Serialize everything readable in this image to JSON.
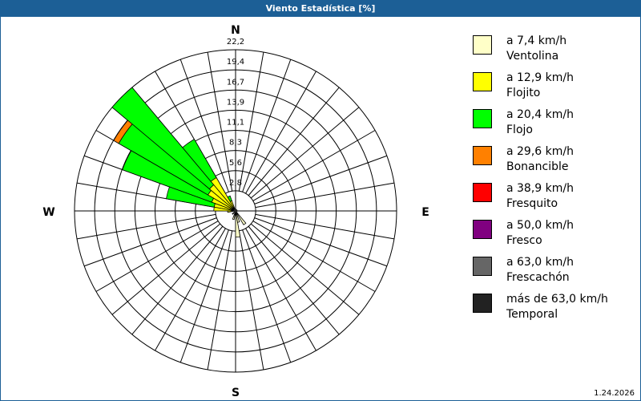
{
  "title": "Viento Estadística [%]",
  "version": "1.24.2026",
  "chart_data": {
    "type": "wind-rose",
    "compass": {
      "n": "N",
      "e": "E",
      "s": "S",
      "w": "W"
    },
    "ring_labels": [
      "2,8",
      "5,6",
      "8,3",
      "11,1",
      "13,9",
      "16,7",
      "19,4",
      "22,2"
    ],
    "rmax": 22.2,
    "sector_width_deg": 10,
    "classes": [
      {
        "range": "a 7,4 km/h",
        "name": "Ventolina",
        "color": "#ffffc8"
      },
      {
        "range": "a 12,9 km/h",
        "name": "Flojito",
        "color": "#ffff00"
      },
      {
        "range": "a 20,4 km/h",
        "name": "Flojo",
        "color": "#00ff00"
      },
      {
        "range": "a 29,6 km/h",
        "name": "Bonancible",
        "color": "#ff8000"
      },
      {
        "range": "a 38,9 km/h",
        "name": "Fresquito",
        "color": "#ff0000"
      },
      {
        "range": "a 50,0 km/h",
        "name": "Fresco",
        "color": "#800080"
      },
      {
        "range": "a 63,0 km/h",
        "name": "Frescachón",
        "color": "#666666"
      },
      {
        "range": "más de 63,0 km/h",
        "name": "Temporal",
        "color": "#222222"
      }
    ],
    "sectors": [
      {
        "dir": 335,
        "values": [
          0.3,
          1.2,
          0.7,
          0,
          0,
          0,
          0,
          0
        ]
      },
      {
        "dir": 325,
        "values": [
          0.5,
          4.8,
          6.1,
          0,
          0,
          0,
          0,
          0
        ]
      },
      {
        "dir": 315,
        "values": [
          0.5,
          4.2,
          17.5,
          0,
          0,
          0,
          0,
          0
        ]
      },
      {
        "dir": 305,
        "values": [
          0.5,
          3.9,
          14.2,
          0.8,
          0,
          0,
          0,
          0
        ]
      },
      {
        "dir": 295,
        "values": [
          0.5,
          3.0,
          13.1,
          0,
          0,
          0,
          0,
          0
        ]
      },
      {
        "dir": 285,
        "values": [
          0.5,
          2.5,
          6.7,
          0,
          0,
          0,
          0,
          0
        ]
      },
      {
        "dir": 275,
        "values": [
          0.4,
          2.6,
          0,
          0,
          0,
          0,
          0,
          0
        ]
      },
      {
        "dir": 265,
        "values": [
          0.5,
          0.6,
          0,
          0,
          0,
          0,
          0,
          0
        ]
      },
      {
        "dir": 175,
        "values": [
          3.6,
          0,
          0,
          0,
          0,
          0,
          0,
          0
        ]
      },
      {
        "dir": 165,
        "values": [
          1.6,
          0,
          0,
          0,
          0,
          0,
          0,
          0
        ]
      },
      {
        "dir": 145,
        "values": [
          2.2,
          0,
          0,
          0,
          0,
          0,
          0,
          0
        ]
      },
      {
        "dir": 195,
        "values": [
          1.2,
          0,
          0,
          0,
          0,
          0,
          0,
          0
        ]
      },
      {
        "dir": 225,
        "values": [
          0.6,
          0,
          0,
          0,
          0,
          0,
          0,
          0
        ]
      }
    ]
  }
}
